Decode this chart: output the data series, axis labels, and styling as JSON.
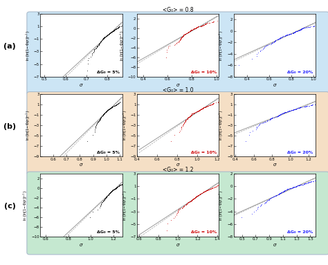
{
  "rows": [
    {
      "label": "(a)",
      "bg_color": "#cce5f5",
      "G_mean": 0.8,
      "title_mid": "<G₀> = 0.8",
      "panels": [
        {
          "color": "black",
          "dG_label": "ΔG₀ = 5%",
          "label_color": "black",
          "x_range": [
            0.48,
            0.87
          ],
          "y_range": [
            -7,
            3
          ],
          "x_ticks": [
            0.5,
            0.6,
            0.7,
            0.8
          ],
          "mu": 0.8,
          "sigma": 0.04,
          "n_points": 200,
          "line_slope": 25,
          "line_intercept": -20
        },
        {
          "color": "#cc0000",
          "dG_label": "ΔG₀ = 10%",
          "label_color": "#cc0000",
          "x_range": [
            0.35,
            1.02
          ],
          "y_range": [
            -10,
            3
          ],
          "x_ticks": [
            0.4,
            0.6,
            0.8,
            1.0
          ],
          "mu": 0.8,
          "sigma": 0.08,
          "n_points": 200,
          "line_slope": 12,
          "line_intercept": -10
        },
        {
          "color": "#1a1aff",
          "dG_label": "ΔG₀ = 20%",
          "label_color": "#1a1aff",
          "x_range": [
            0.28,
            1.02
          ],
          "y_range": [
            -8,
            3
          ],
          "x_ticks": [
            0.4,
            0.6,
            0.8,
            1.0
          ],
          "mu": 0.8,
          "sigma": 0.16,
          "n_points": 200,
          "line_slope": 6,
          "line_intercept": -5
        }
      ]
    },
    {
      "label": "(b)",
      "bg_color": "#f5dfc5",
      "G_mean": 1.0,
      "title_mid": "<G₀> = 1.0",
      "panels": [
        {
          "color": "black",
          "dG_label": "ΔG₀ = 5%",
          "label_color": "black",
          "x_range": [
            0.5,
            1.12
          ],
          "y_range": [
            -9,
            3
          ],
          "x_ticks": [
            0.6,
            0.7,
            0.8,
            0.9,
            1.0,
            1.1
          ],
          "mu": 1.0,
          "sigma": 0.05,
          "n_points": 200,
          "line_slope": 20,
          "line_intercept": -20
        },
        {
          "color": "#cc0000",
          "dG_label": "ΔG₀ = 10%",
          "label_color": "#cc0000",
          "x_range": [
            0.42,
            1.22
          ],
          "y_range": [
            -9,
            3
          ],
          "x_ticks": [
            0.4,
            0.6,
            0.8,
            1.0,
            1.2
          ],
          "mu": 1.0,
          "sigma": 0.1,
          "n_points": 200,
          "line_slope": 10,
          "line_intercept": -10
        },
        {
          "color": "#1a1aff",
          "dG_label": "ΔG₀ = 20%",
          "label_color": "#1a1aff",
          "x_range": [
            0.38,
            1.28
          ],
          "y_range": [
            -9,
            3
          ],
          "x_ticks": [
            0.4,
            0.6,
            0.8,
            1.0,
            1.2
          ],
          "mu": 1.0,
          "sigma": 0.2,
          "n_points": 200,
          "line_slope": 5,
          "line_intercept": -5
        }
      ]
    },
    {
      "label": "(c)",
      "bg_color": "#c5e8d0",
      "G_mean": 1.2,
      "title_mid": "<G₀> = 1.2",
      "panels": [
        {
          "color": "black",
          "dG_label": "ΔG₀ = 5%",
          "label_color": "black",
          "x_range": [
            0.55,
            1.28
          ],
          "y_range": [
            -10,
            3
          ],
          "x_ticks": [
            0.6,
            0.8,
            1.0,
            1.2
          ],
          "mu": 1.2,
          "sigma": 0.06,
          "n_points": 200,
          "line_slope": 17,
          "line_intercept": -20
        },
        {
          "color": "#cc0000",
          "dG_label": "ΔG₀ = 10%",
          "label_color": "#cc0000",
          "x_range": [
            0.58,
            1.42
          ],
          "y_range": [
            -7,
            3
          ],
          "x_ticks": [
            0.6,
            0.8,
            1.0,
            1.2,
            1.4
          ],
          "mu": 1.2,
          "sigma": 0.12,
          "n_points": 200,
          "line_slope": 8,
          "line_intercept": -10
        },
        {
          "color": "#1a1aff",
          "dG_label": "ΔG₀ = 20%",
          "label_color": "#1a1aff",
          "x_range": [
            0.38,
            1.58
          ],
          "y_range": [
            -8,
            2
          ],
          "x_ticks": [
            0.5,
            0.7,
            0.9,
            1.1,
            1.3,
            1.5
          ],
          "mu": 1.2,
          "sigma": 0.24,
          "n_points": 200,
          "line_slope": 4,
          "line_intercept": -5
        }
      ]
    }
  ]
}
